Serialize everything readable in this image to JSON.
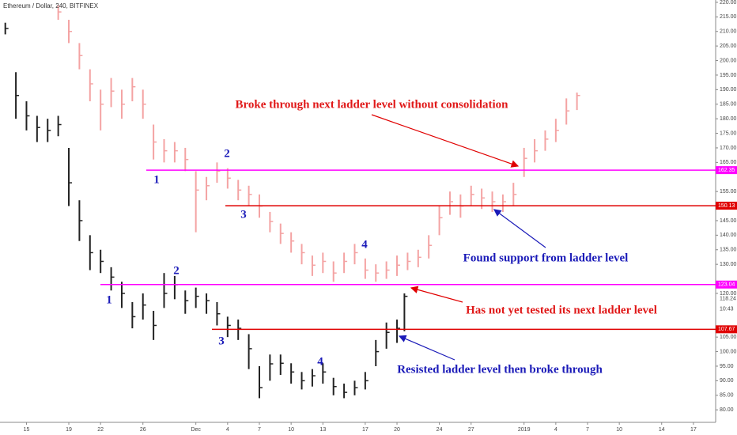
{
  "chart_data": {
    "type": "range-bar",
    "title": "Ethereum / Dollar, 240, BITFINEX",
    "xlim": [
      12.5,
      80.1
    ],
    "ylim": [
      75.7,
      220.8
    ],
    "xticks": [
      15,
      19,
      22,
      26,
      {
        "value": 31,
        "label": "Dec"
      },
      {
        "value": 34,
        "label": "4"
      },
      {
        "value": 37,
        "label": "7"
      },
      {
        "value": 40,
        "label": "10"
      },
      {
        "value": 43,
        "label": "13"
      },
      {
        "value": 47,
        "label": "17"
      },
      {
        "value": 50,
        "label": "20"
      },
      {
        "value": 54,
        "label": "24"
      },
      {
        "value": 57,
        "label": "27"
      },
      {
        "value": 62,
        "label": "2019"
      },
      {
        "value": 65,
        "label": "4"
      },
      {
        "value": 68,
        "label": "7"
      },
      {
        "value": 71,
        "label": "10"
      },
      {
        "value": 75,
        "label": "14"
      },
      {
        "value": 78,
        "label": "17"
      }
    ],
    "yticks": [
      {
        "value": 80,
        "label": "80.00"
      },
      {
        "value": 85,
        "label": "85.00"
      },
      {
        "value": 90,
        "label": "90.00"
      },
      {
        "value": 95,
        "label": "95.00"
      },
      {
        "value": 100,
        "label": "100.00"
      },
      {
        "value": 105,
        "label": "105.00"
      },
      {
        "value": 120,
        "label": "120.00"
      },
      {
        "value": 130,
        "label": "130.00"
      },
      {
        "value": 135,
        "label": "135.00"
      },
      {
        "value": 140,
        "label": "140.00"
      },
      {
        "value": 145,
        "label": "145.00"
      },
      {
        "value": 155,
        "label": "155.00"
      },
      {
        "value": 165,
        "label": "165.00"
      },
      {
        "value": 170,
        "label": "170.00"
      },
      {
        "value": 175,
        "label": "175.00"
      },
      {
        "value": 180,
        "label": "180.00"
      },
      {
        "value": 185,
        "label": "185.00"
      },
      {
        "value": 190,
        "label": "190.00"
      },
      {
        "value": 195,
        "label": "195.00"
      },
      {
        "value": 200,
        "label": "200.00"
      },
      {
        "value": 205,
        "label": "205.00"
      },
      {
        "value": 210,
        "label": "210.00"
      },
      {
        "value": 215,
        "label": "215.00"
      },
      {
        "value": 220,
        "label": "220.00"
      }
    ],
    "series": [
      {
        "color": "#222222",
        "x": [
          13,
          14,
          15,
          16,
          17,
          18,
          19,
          20,
          21,
          22,
          23,
          24,
          25,
          26,
          27,
          28,
          29,
          30,
          31,
          32,
          33,
          34,
          35,
          36,
          37,
          38,
          39,
          40,
          41,
          42,
          43,
          44,
          45,
          46,
          47,
          48,
          49,
          50,
          50.7
        ],
        "values": [
          211,
          188,
          181,
          177,
          176,
          178,
          158,
          145,
          134,
          131,
          125.6,
          120,
          112,
          116,
          109,
          120,
          123,
          117.5,
          119,
          117.5,
          113,
          109,
          108,
          101,
          87.6,
          95.8,
          96,
          93,
          90,
          91.7,
          93,
          88,
          86,
          87.6,
          90,
          100,
          106.6,
          108,
          119
        ],
        "high": [
          213,
          196,
          186,
          181,
          180,
          181,
          170,
          152,
          140,
          135,
          129,
          124,
          117,
          120,
          114,
          127,
          126,
          121,
          122,
          120,
          117,
          112,
          111,
          106,
          95,
          99,
          99,
          96,
          93,
          94,
          96,
          91,
          89,
          90,
          93,
          104,
          110,
          111,
          120
        ],
        "low": [
          209,
          180,
          176,
          172,
          172,
          174,
          150,
          138,
          128,
          127,
          121,
          115,
          108,
          111,
          104,
          115,
          118,
          113,
          115,
          113,
          109,
          105,
          104,
          94,
          84,
          90,
          92,
          89,
          87,
          88,
          89,
          85,
          84,
          85,
          87,
          95,
          101,
          103,
          107
        ]
      },
      {
        "color": "#f4a3a3",
        "x": [
          18,
          19,
          20,
          21,
          22,
          23,
          24,
          25,
          26,
          27,
          28,
          29,
          30,
          31,
          32,
          33,
          34,
          35,
          36,
          37,
          38,
          39,
          40,
          41,
          42,
          43,
          44,
          45,
          46,
          47,
          48,
          49,
          50,
          51,
          52,
          53,
          54,
          55,
          56,
          57,
          58,
          59,
          60,
          61,
          62,
          63,
          64,
          65,
          66,
          67
        ],
        "values": [
          216.7,
          210,
          201.7,
          192,
          185,
          189.5,
          185,
          191,
          185,
          172,
          169,
          169,
          166,
          155.5,
          157,
          162,
          159.6,
          155.5,
          154,
          150,
          144.7,
          140.6,
          138,
          134,
          129.7,
          131,
          127,
          131,
          134,
          128,
          127,
          128,
          129.7,
          131,
          132.4,
          136.5,
          146,
          151.5,
          150,
          154,
          152.8,
          151.5,
          151.5,
          154,
          166.4,
          169,
          173,
          176,
          182.7,
          188
        ],
        "high": [
          219,
          214,
          206,
          197,
          190,
          194,
          190,
          194,
          190,
          178,
          173,
          172,
          170,
          162,
          160,
          165,
          163,
          159,
          157,
          154,
          148,
          144,
          141,
          137,
          133,
          134,
          131,
          134,
          137,
          132,
          130,
          131,
          133,
          134,
          135,
          140,
          150,
          155,
          154,
          157,
          156,
          155,
          154,
          158,
          170,
          173,
          176,
          180,
          187,
          189
        ],
        "low": [
          214,
          206,
          197,
          186,
          176,
          184,
          180,
          186,
          180,
          166,
          165,
          165,
          162,
          141,
          152,
          158,
          156,
          152,
          150,
          146,
          141,
          137,
          134,
          130,
          126,
          127,
          124,
          127,
          130,
          125,
          124,
          125,
          126,
          128,
          129,
          132,
          140,
          147,
          146,
          150,
          149,
          148,
          148,
          150,
          160,
          165,
          169,
          172,
          178,
          183
        ]
      }
    ],
    "levels": [
      {
        "value": 162.35,
        "color": "#ff00ff"
      },
      {
        "value": 150.13,
        "color": "#e00000"
      },
      {
        "value": 123.04,
        "color": "#ff00ff"
      },
      {
        "value": 107.67,
        "color": "#e00000"
      }
    ],
    "last_price": 118.24,
    "countdown": "10:43",
    "annotations": [
      "Broke through next ladder level without consolidation",
      "Found support from ladder level",
      "Has not yet tested its next ladder level",
      "Resisted ladder level then broke through"
    ],
    "wave_labels": [
      "1",
      "2",
      "3",
      "4",
      "1",
      "2",
      "3",
      "4"
    ]
  }
}
